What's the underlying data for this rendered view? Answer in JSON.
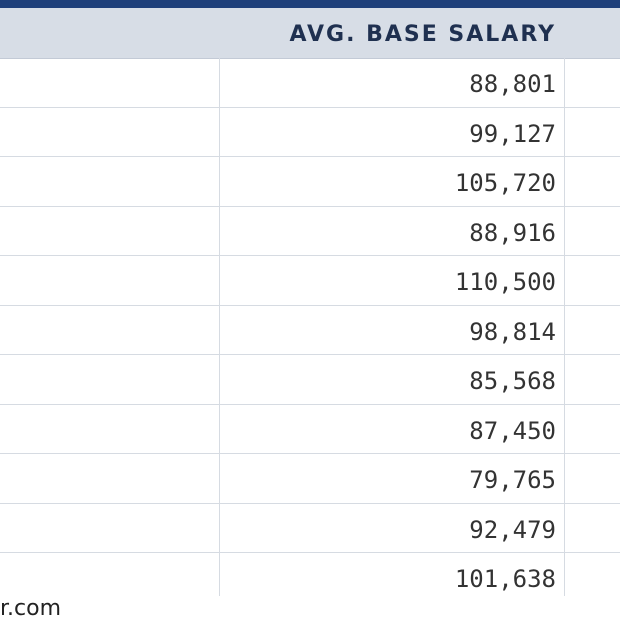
{
  "table": {
    "header": {
      "salary_label": "AVG. BASE SALARY"
    },
    "rows": [
      {
        "salary": "88,801"
      },
      {
        "salary": "99,127"
      },
      {
        "salary": "105,720"
      },
      {
        "salary": "88,916"
      },
      {
        "salary": "110,500"
      },
      {
        "salary": "98,814"
      },
      {
        "salary": "85,568"
      },
      {
        "salary": "87,450"
      },
      {
        "salary": "79,765"
      },
      {
        "salary": "92,479"
      },
      {
        "salary": "101,638"
      }
    ]
  },
  "footer": {
    "source_text": "r.com"
  },
  "colors": {
    "top_band": "#1e3f7a",
    "header_bg": "#d7dde6",
    "header_text": "#1f3050",
    "grid": "#d6dbe2"
  }
}
